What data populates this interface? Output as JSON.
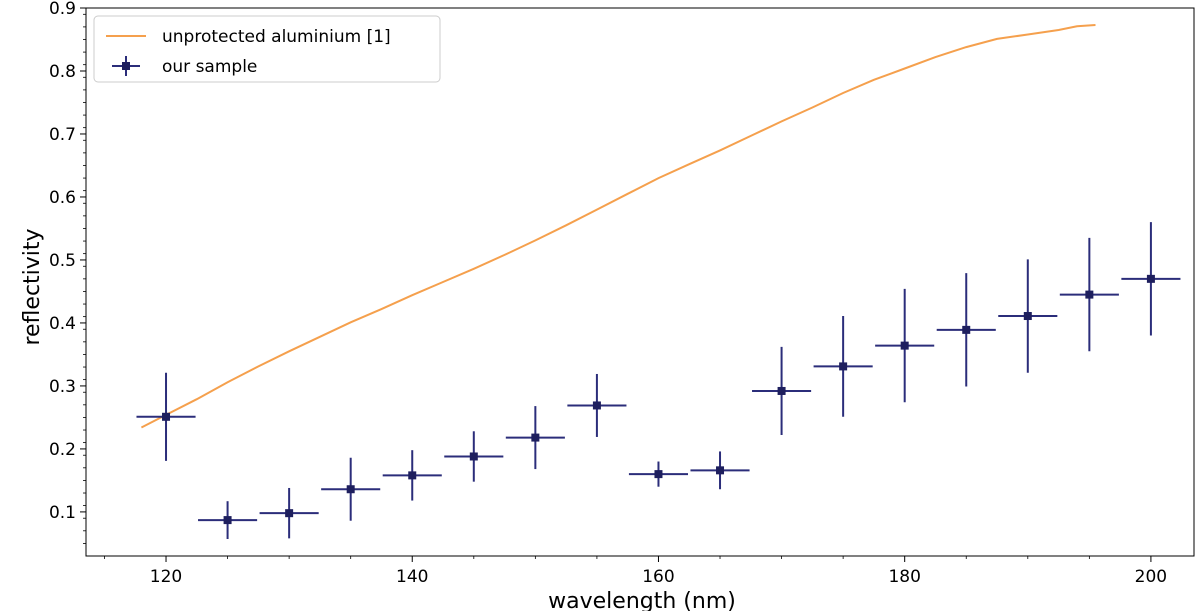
{
  "chart_data": {
    "type": "line",
    "title": "",
    "xlabel": "wavelength (nm)",
    "ylabel": "reflectivity",
    "xlim": [
      113.5,
      203.5
    ],
    "ylim": [
      0.03,
      0.9
    ],
    "x_ticks": [
      120,
      140,
      160,
      180,
      200
    ],
    "x_tick_labels": [
      "120",
      "140",
      "160",
      "180",
      "200"
    ],
    "y_ticks": [
      0.1,
      0.2,
      0.3,
      0.4,
      0.5,
      0.6,
      0.7,
      0.8,
      0.9
    ],
    "y_tick_labels": [
      "0.1",
      "0.2",
      "0.3",
      "0.4",
      "0.5",
      "0.6",
      "0.7",
      "0.8",
      "0.9"
    ],
    "grid": false,
    "legend_position": "top-left",
    "series": [
      {
        "name": "unprotected aluminium [1]",
        "kind": "line",
        "color": "#f5a04d",
        "x": [
          118,
          120,
          122.5,
          125,
          127.5,
          130,
          132.5,
          135,
          137.5,
          140,
          142.5,
          145,
          147.5,
          150,
          152.5,
          155,
          157.5,
          160,
          162.5,
          165,
          167.5,
          170,
          172.5,
          175,
          177.5,
          180,
          182.5,
          185,
          187.5,
          190,
          192.5,
          194,
          195.5
        ],
        "y": [
          0.234,
          0.254,
          0.279,
          0.306,
          0.331,
          0.355,
          0.378,
          0.401,
          0.422,
          0.444,
          0.465,
          0.486,
          0.508,
          0.531,
          0.555,
          0.58,
          0.605,
          0.63,
          0.652,
          0.674,
          0.697,
          0.72,
          0.742,
          0.765,
          0.786,
          0.804,
          0.822,
          0.838,
          0.851,
          0.858,
          0.865,
          0.871,
          0.873
        ]
      },
      {
        "name": "our sample",
        "kind": "errorbar",
        "color": "#2b2d7a",
        "marker_color": "#1e1f5e",
        "x": [
          120,
          125,
          130,
          135,
          140,
          145,
          150,
          155,
          160,
          165,
          170,
          175,
          180,
          185,
          190,
          195,
          200
        ],
        "y": [
          0.251,
          0.087,
          0.098,
          0.136,
          0.158,
          0.188,
          0.218,
          0.269,
          0.16,
          0.166,
          0.292,
          0.331,
          0.364,
          0.389,
          0.411,
          0.445,
          0.47
        ],
        "x_err": [
          2.4,
          2.4,
          2.4,
          2.4,
          2.4,
          2.4,
          2.4,
          2.4,
          2.4,
          2.4,
          2.4,
          2.4,
          2.4,
          2.4,
          2.4,
          2.4,
          2.4
        ],
        "y_err": [
          0.07,
          0.03,
          0.04,
          0.05,
          0.04,
          0.04,
          0.05,
          0.05,
          0.02,
          0.03,
          0.07,
          0.08,
          0.09,
          0.09,
          0.09,
          0.09,
          0.09
        ]
      }
    ]
  }
}
